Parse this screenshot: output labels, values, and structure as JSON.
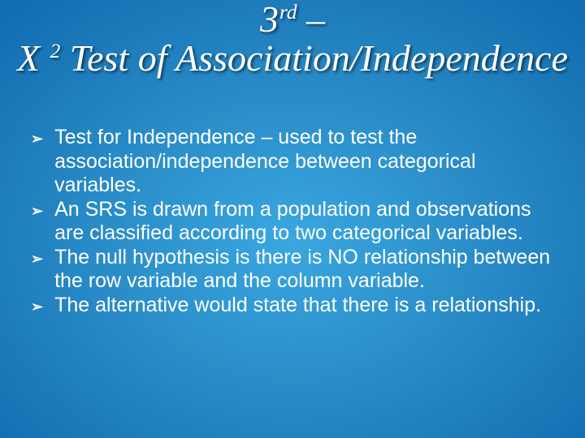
{
  "slide": {
    "title_line1_pre": "3",
    "title_line1_sup": "rd",
    "title_line1_post": " –",
    "title_line2_pre": "Χ ",
    "title_line2_sup": "2",
    "title_line2_post": " Test of Association/Independence",
    "bullet_marker": "➢",
    "bullets": [
      "Test for Independence – used to test the association/independence between categorical variables.",
      "An SRS is drawn from a population and observations are classified according to two categorical variables.",
      "The null hypothesis is there is NO relationship between the row variable and the column variable.",
      "The alternative would state that there is a relationship."
    ],
    "style": {
      "background_colors": [
        "#3aa7e0",
        "#2a8dc8",
        "#1773b5",
        "#0960a5",
        "#044e8e"
      ],
      "text_color": "#ffffff",
      "title_fontsize": 46,
      "body_fontsize": 25,
      "marker_fontsize": 18,
      "title_shadow": "2px 2px 3px rgba(0,0,0,0.6)"
    }
  }
}
